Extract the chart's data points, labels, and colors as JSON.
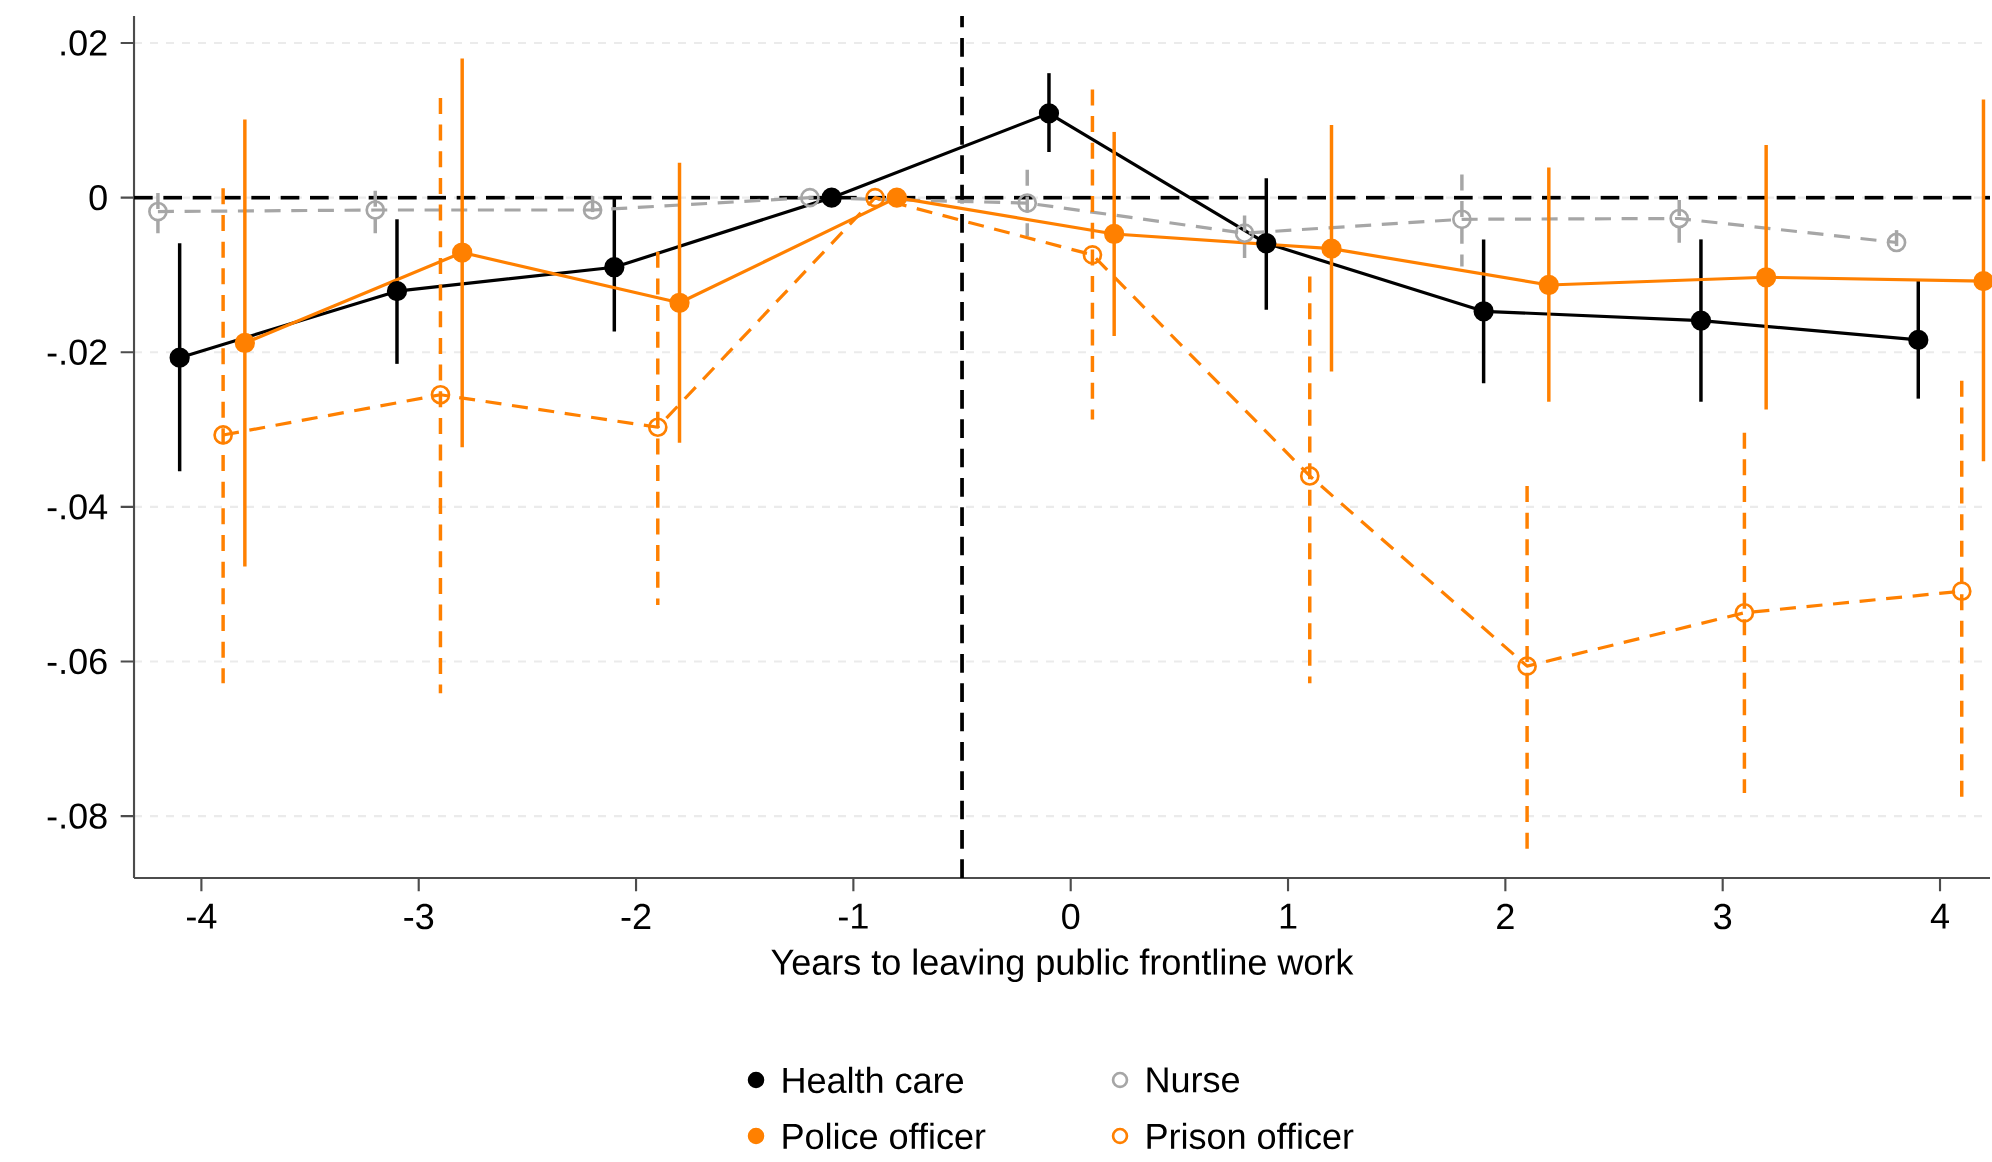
{
  "chart_data": {
    "type": "line",
    "xlabel": "Years to leaving public frontline work",
    "xlim": [
      -4.31,
      4.23
    ],
    "ylim": [
      -0.088,
      0.0235
    ],
    "xticks": [
      -4,
      -3,
      -2,
      -1,
      0,
      1,
      2,
      3,
      4
    ],
    "yticks": [
      {
        "value": -0.08,
        "label": "-.08"
      },
      {
        "value": -0.06,
        "label": "-.06"
      },
      {
        "value": -0.04,
        "label": "-.04"
      },
      {
        "value": -0.02,
        "label": "-.02"
      },
      0,
      {
        "value": 0.02,
        "label": ".02"
      }
    ],
    "grid": "y",
    "legend": "bottom",
    "marker": "circle",
    "ref_lines": [
      {
        "axis": "y",
        "value": 0,
        "color": "#000000",
        "line_style": "dashed"
      },
      {
        "axis": "x",
        "value": -0.5,
        "color": "#000000",
        "line_style": "dashed"
      }
    ],
    "series": [
      {
        "name": "Health care",
        "color": "#000000",
        "line_style": "solid",
        "x": [
          -4.1,
          -3.1,
          -2.1,
          -1.1,
          -0.1,
          0.9,
          1.9,
          2.9,
          3.9
        ],
        "values": [
          -0.0207,
          -0.0121,
          -0.009,
          0,
          0.0109,
          -0.0059,
          -0.0147,
          -0.0159,
          -0.0184
        ],
        "errors": [
          [
            -0.0354,
            -0.0059
          ],
          [
            -0.0215,
            -0.0028
          ],
          [
            -0.0173,
            -0.0001
          ],
          null,
          [
            0.0059,
            0.0161
          ],
          [
            -0.0145,
            0.0025
          ],
          [
            -0.024,
            -0.0054
          ],
          [
            -0.0264,
            -0.0054
          ],
          [
            -0.026,
            -0.0106
          ]
        ]
      },
      {
        "name": "Nurse",
        "color": "#a6a6a6",
        "line_style": "dashed",
        "x": [
          -4.2,
          -3.2,
          -2.2,
          -1.2,
          -0.2,
          0.8,
          1.8,
          2.8,
          3.8
        ],
        "values": [
          -0.0018,
          -0.0016,
          -0.0016,
          0,
          -0.0007,
          -0.0046,
          -0.0028,
          -0.0027,
          -0.0058
        ],
        "errors": [
          [
            -0.0046,
            0.0006
          ],
          [
            -0.0053,
            0.0009
          ],
          [
            -0.003,
            0.0002
          ],
          null,
          [
            -0.005,
            0.0036
          ],
          [
            -0.0085,
            -0.0023
          ],
          [
            -0.0089,
            0.003
          ],
          [
            -0.0065,
            -0.0003
          ],
          [
            -0.0075,
            -0.0042
          ]
        ]
      },
      {
        "name": "Police officer",
        "color": "#ff8000",
        "line_style": "solid",
        "x": [
          -3.8,
          -2.8,
          -1.8,
          -0.8,
          0.2,
          1.2,
          2.2,
          3.2,
          4.2
        ],
        "values": [
          -0.0188,
          -0.0071,
          -0.0136,
          0,
          -0.0047,
          -0.0066,
          -0.0113,
          -0.0103,
          -0.0108
        ],
        "errors": [
          [
            -0.0477,
            0.0101
          ],
          [
            -0.0323,
            0.018
          ],
          [
            -0.0317,
            0.0045
          ],
          null,
          [
            -0.0179,
            0.0085
          ],
          [
            -0.0225,
            0.0094
          ],
          [
            -0.0264,
            0.0039
          ],
          [
            -0.0274,
            0.0068
          ],
          [
            -0.0341,
            0.0127
          ]
        ]
      },
      {
        "name": "Prison officer",
        "color": "#ff8000",
        "line_style": "dashed",
        "x": [
          -3.9,
          -2.9,
          -1.9,
          -0.9,
          0.1,
          1.1,
          2.1,
          3.1,
          4.1
        ],
        "values": [
          -0.0307,
          -0.0255,
          -0.0297,
          0,
          -0.0074,
          -0.036,
          -0.0606,
          -0.0537,
          -0.0509
        ],
        "errors": [
          [
            -0.0628,
            0.0012
          ],
          [
            -0.0641,
            0.0129
          ],
          [
            -0.0527,
            -0.007
          ],
          null,
          [
            -0.0287,
            0.014
          ],
          [
            -0.0628,
            -0.0102
          ],
          [
            -0.0843,
            -0.0373
          ],
          [
            -0.077,
            -0.0304
          ],
          [
            -0.0783,
            -0.0237
          ]
        ]
      }
    ]
  }
}
